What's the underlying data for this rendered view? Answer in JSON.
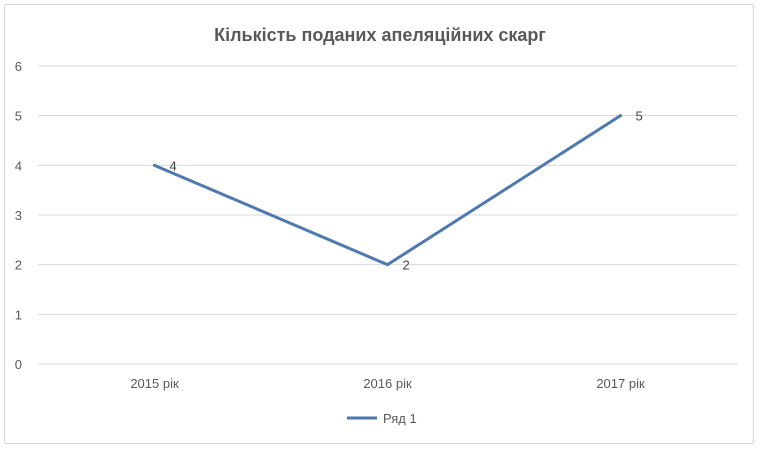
{
  "chart_data": {
    "type": "line",
    "title": "Кількість поданих апеляційних скарг",
    "categories": [
      "2015 рік",
      "2016 рік",
      "2017 рік"
    ],
    "series": [
      {
        "name": "Ряд 1",
        "values": [
          4,
          2,
          5
        ],
        "color": "#4e79b0"
      }
    ],
    "ylim": [
      0,
      6
    ],
    "yticks": [
      0,
      1,
      2,
      3,
      4,
      5,
      6
    ],
    "grid": true,
    "legend": "bottom",
    "data_labels": true
  }
}
